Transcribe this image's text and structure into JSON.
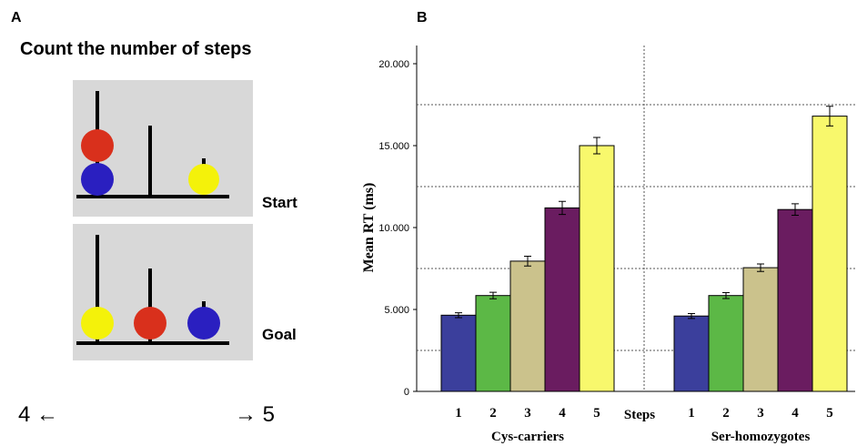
{
  "panel_a": {
    "label": "A",
    "title": "Count the number of steps",
    "start_label": "Start",
    "goal_label": "Goal",
    "left_hint": "4 ←",
    "right_hint": "→ 5"
  },
  "chart_data": {
    "type": "bar",
    "panel_label": "B",
    "ylabel": "Mean RT (ms)",
    "xlabel": "Steps",
    "ylim": [
      0,
      20000
    ],
    "yticks": [
      0,
      {
        "value": 5000,
        "label": "5.000"
      },
      {
        "value": 10000,
        "label": "10.000"
      },
      {
        "value": 15000,
        "label": "15.000"
      },
      {
        "value": 20000,
        "label": "20.000"
      }
    ],
    "grid_lines": [
      2500,
      7500,
      12500,
      17500
    ],
    "colors": [
      "#3b3f9c",
      "#5cb846",
      "#cbc28c",
      "#6a1c60",
      "#f8f86c"
    ],
    "groups": [
      {
        "name": "Cys-carriers",
        "categories": [
          "1",
          "2",
          "3",
          "4",
          "5"
        ],
        "values": [
          4650,
          5850,
          7950,
          11200,
          15000
        ],
        "errors": [
          150,
          200,
          300,
          400,
          500
        ]
      },
      {
        "name": "Ser-homozygotes",
        "categories": [
          "1",
          "2",
          "3",
          "4",
          "5"
        ],
        "values": [
          4600,
          5850,
          7550,
          11100,
          16800
        ],
        "errors": [
          150,
          180,
          230,
          350,
          600
        ]
      }
    ]
  }
}
